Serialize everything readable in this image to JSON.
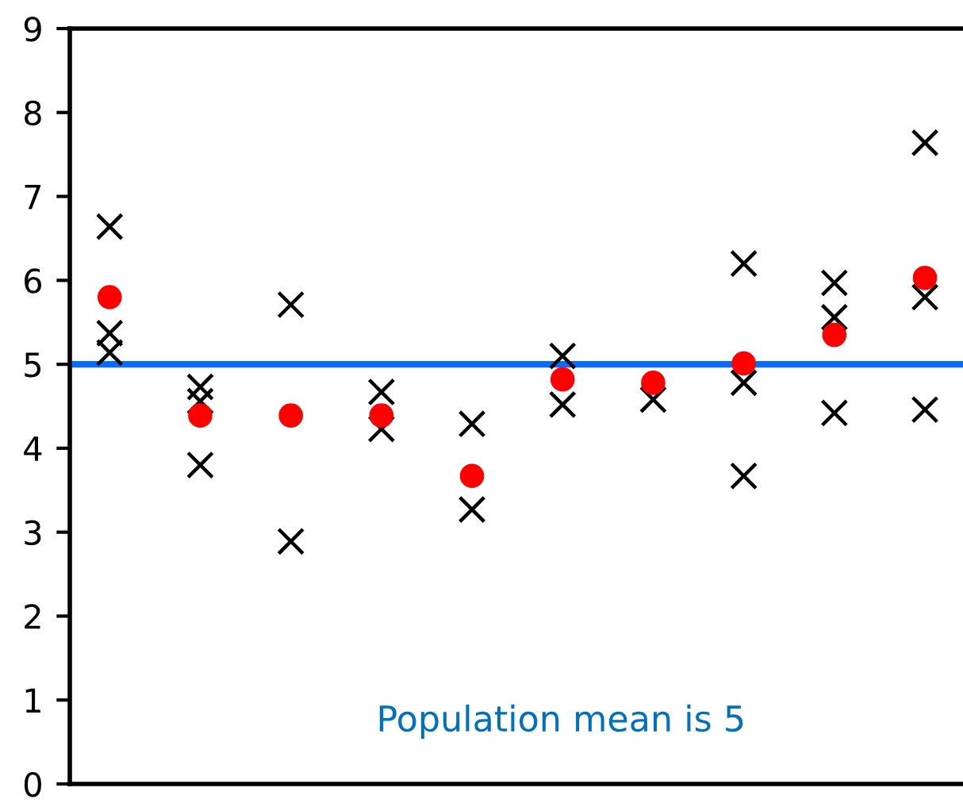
{
  "chart_data": {
    "type": "scatter",
    "categories": [
      null,
      null,
      null,
      null,
      null,
      null,
      null,
      null,
      null,
      null
    ],
    "series": [
      {
        "color": "#000000",
        "marker": "cross",
        "values": [
          6.64,
          4.73,
          5.71,
          4.67,
          4.29,
          5.1,
          null,
          6.2,
          5.97,
          7.64
        ]
      },
      {
        "color": "#000000",
        "marker": "cross",
        "values": [
          5.37,
          4.56,
          null,
          null,
          3.27,
          4.52,
          4.58,
          4.78,
          5.56,
          5.8
        ]
      },
      {
        "color": "#000000",
        "marker": "cross",
        "values": [
          5.14,
          3.8,
          2.89,
          4.23,
          null,
          null,
          null,
          3.67,
          4.42,
          4.46
        ]
      },
      {
        "color": "#ff0000",
        "marker": "circle",
        "values": [
          5.8,
          4.39,
          4.39,
          4.39,
          3.67,
          4.82,
          4.78,
          5.01,
          5.35,
          6.03
        ]
      }
    ],
    "ylim": [
      0,
      9
    ],
    "yticks": [
      0,
      1,
      2,
      3,
      4,
      5,
      6,
      7,
      8,
      9
    ],
    "ref_lines": [
      {
        "axis": "y",
        "value": 5,
        "color": "#0a6cff",
        "line_style": "solid"
      }
    ],
    "annotations": [
      "Population mean is 5"
    ],
    "grid": false,
    "legend": false
  }
}
